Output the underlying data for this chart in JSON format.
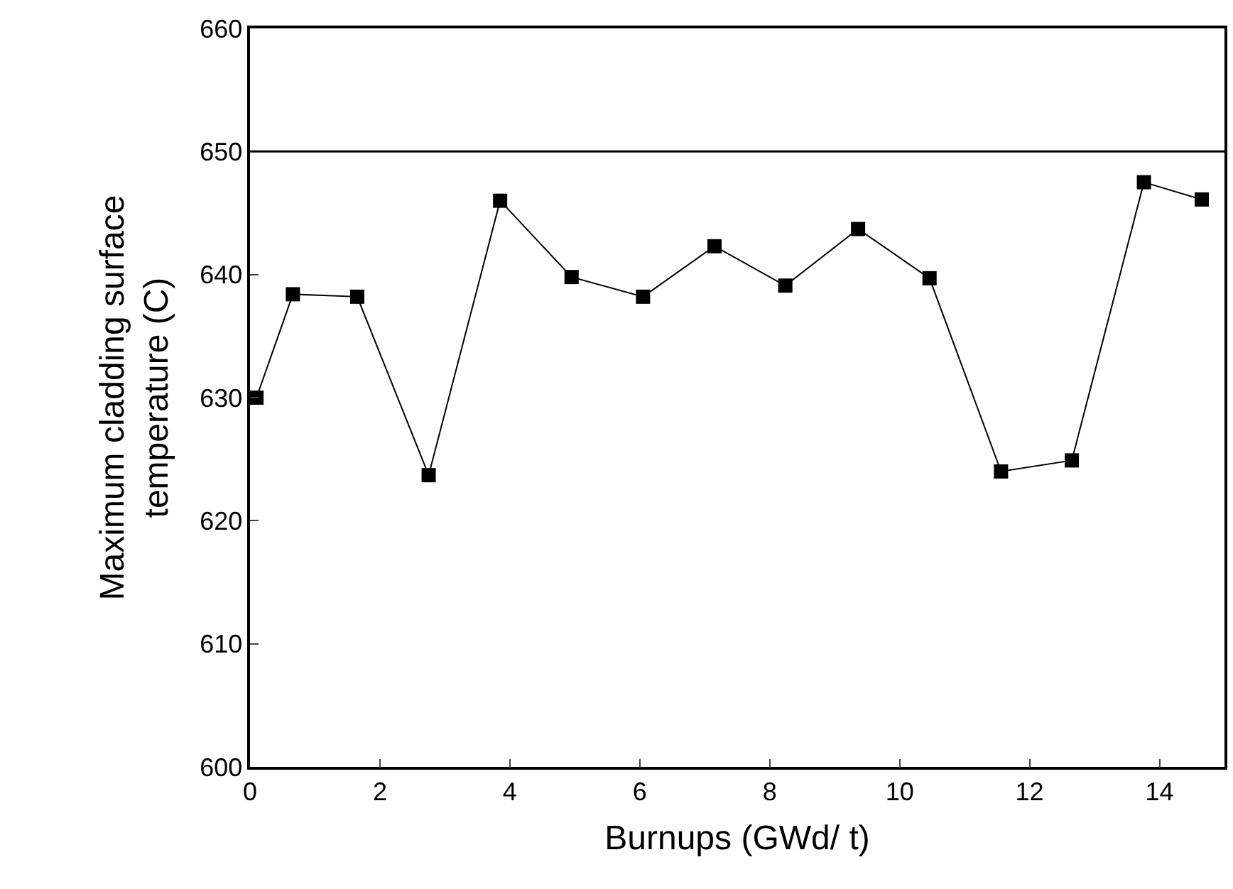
{
  "chart_data": {
    "type": "line",
    "xlabel": "Burnups (GWd/ t)",
    "ylabel": "Maximum cladding surface\ntemperature (C)",
    "x": [
      0.1,
      0.66,
      1.65,
      2.75,
      3.85,
      4.95,
      6.05,
      7.15,
      8.24,
      9.36,
      10.46,
      11.56,
      12.65,
      13.76,
      14.65
    ],
    "series": [
      {
        "color": "#000000",
        "values": [
          630.0,
          638.4,
          638.2,
          623.7,
          646.0,
          639.8,
          638.2,
          642.3,
          639.1,
          643.7,
          639.7,
          624.0,
          624.9,
          647.5,
          646.1
        ]
      }
    ],
    "xlim": [
      0,
      15
    ],
    "xticks": [
      0,
      2,
      4,
      6,
      8,
      10,
      12,
      14
    ],
    "ylim": [
      600,
      660
    ],
    "yticks": [
      600,
      610,
      620,
      630,
      640,
      650,
      660
    ],
    "ref_lines": [
      {
        "axis": "y",
        "value": 650,
        "color": "#000000",
        "line_style": "solid"
      }
    ],
    "marker": "square",
    "line_style": "solid"
  }
}
